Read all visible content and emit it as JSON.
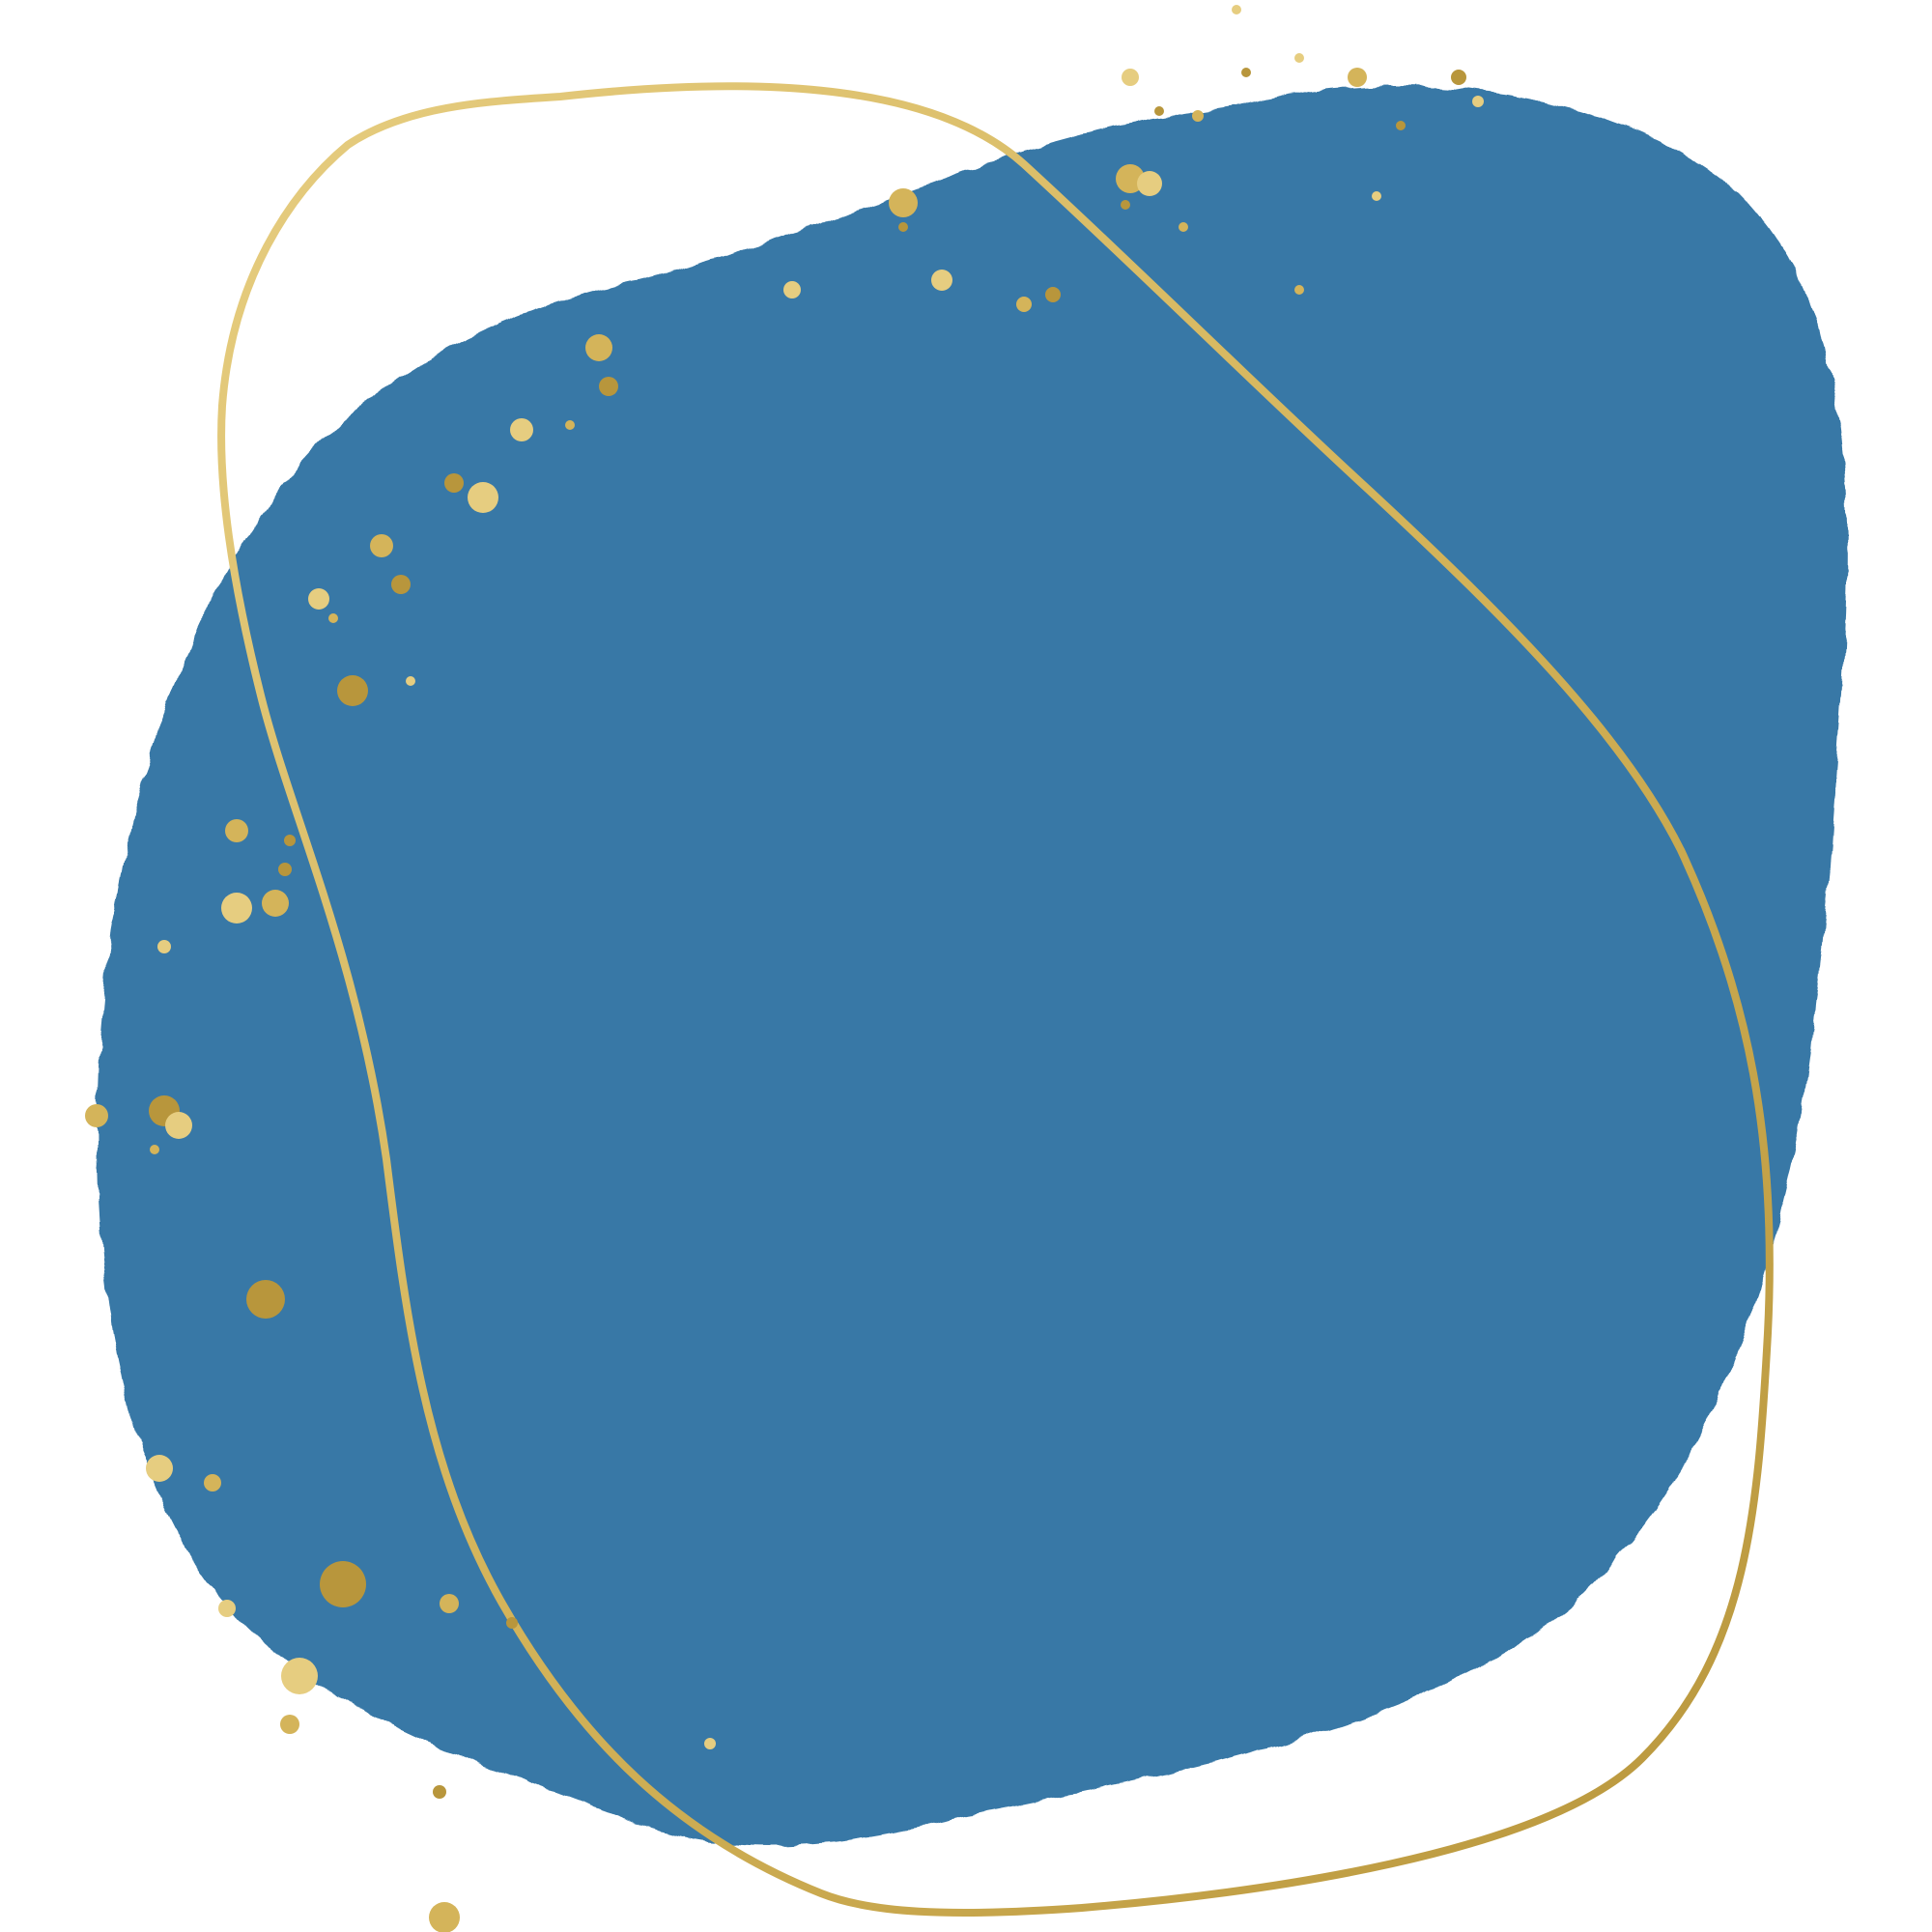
{
  "colors": {
    "background": "#ffffff",
    "blob": "#3878a6",
    "gold": "#d4b45a",
    "gold_light": "#e6cd80",
    "gold_dark": "#b8963c"
  },
  "elements": {
    "blob": "blue-blob",
    "ring": "gold-ring",
    "splatter": "gold-splatter"
  }
}
